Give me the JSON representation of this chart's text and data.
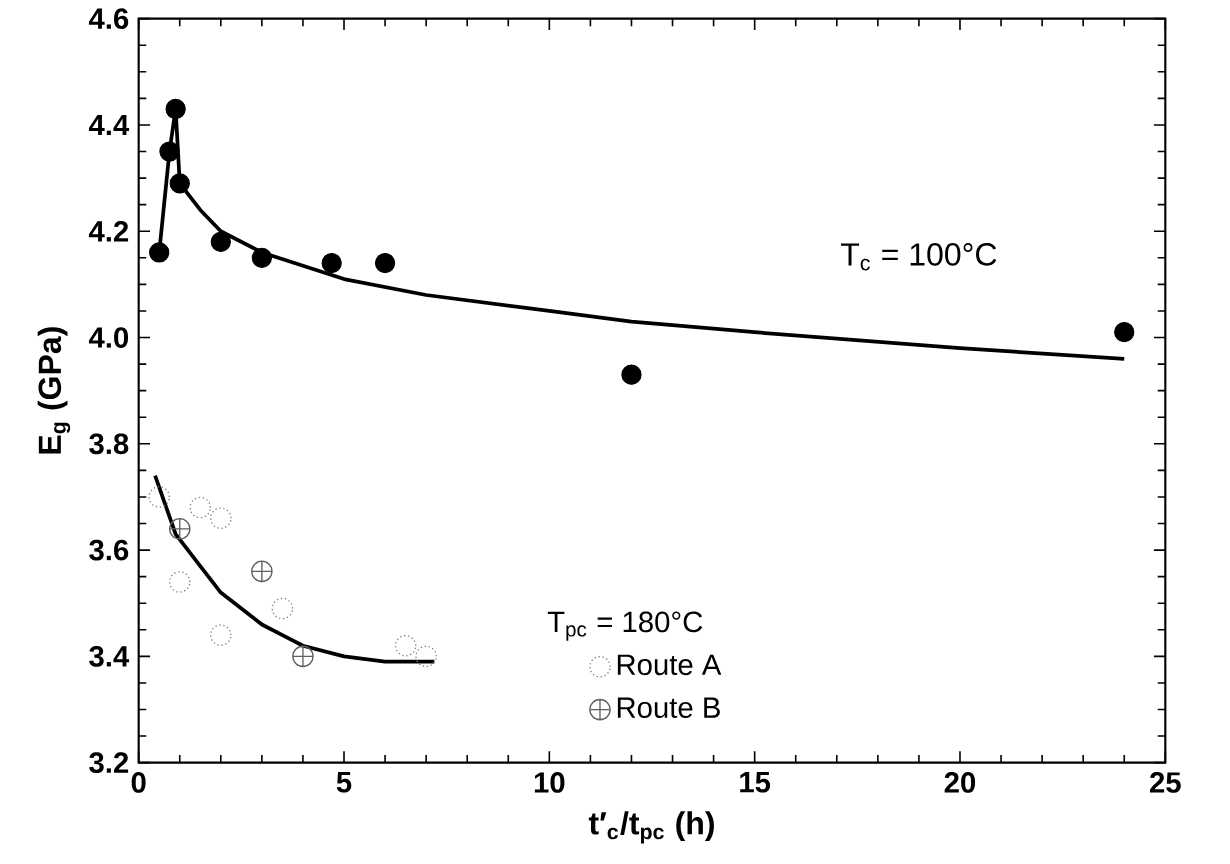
{
  "chart_data": {
    "type": "scatter",
    "xlabel": "t′$_{c}$/t$_{pc}$ (h)",
    "ylabel": "E$_{g}$ (GPa)",
    "xlim": [
      0,
      25
    ],
    "xticks": [
      0,
      5,
      10,
      15,
      20,
      25
    ],
    "ylim": [
      3.2,
      4.6
    ],
    "yticks": [
      3.2,
      3.4,
      3.6,
      3.8,
      {
        "value": 4,
        "label": "4.0"
      },
      4.2,
      4.4,
      4.6
    ],
    "legend": "bottom",
    "legend_title": "T$_{pc}$ = 180°C",
    "annotations": [
      "T$_{c}$ = 100°C"
    ],
    "series": [
      {
        "marker": "circle",
        "line_style": "solid",
        "color": "#000000",
        "x": [
          0.5,
          0.75,
          0.9,
          1,
          2,
          3,
          4.7,
          6,
          12,
          24
        ],
        "values": [
          4.16,
          4.35,
          4.43,
          4.29,
          4.18,
          4.15,
          4.14,
          4.14,
          3.93,
          4.01
        ]
      },
      {
        "type": "line",
        "marker": "none",
        "color": "#000000",
        "x": [
          0.5,
          0.75,
          0.9,
          1,
          1.5,
          2,
          3,
          5,
          7,
          10,
          12,
          15,
          20,
          24
        ],
        "values": [
          4.16,
          4.35,
          4.43,
          4.29,
          4.24,
          4.2,
          4.16,
          4.11,
          4.08,
          4.05,
          4.03,
          4.01,
          3.98,
          3.96
        ]
      },
      {
        "name": "Route A",
        "marker": "circle",
        "line_style": "dotted",
        "color": "#808080",
        "x": [
          0.5,
          1.5,
          2,
          1,
          3.5,
          2,
          6.5,
          7
        ],
        "values": [
          3.7,
          3.68,
          3.66,
          3.54,
          3.49,
          3.44,
          3.42,
          3.4
        ]
      },
      {
        "name": "Route B",
        "marker": "cross",
        "line_style": "solid",
        "color": "#606060",
        "x": [
          1,
          3,
          4
        ],
        "values": [
          3.64,
          3.56,
          3.4
        ]
      },
      {
        "type": "line",
        "marker": "none",
        "color": "#000000",
        "x": [
          0.4,
          0.9,
          1.5,
          2,
          3,
          3.5,
          4,
          5,
          6,
          7.2
        ],
        "values": [
          3.74,
          3.63,
          3.57,
          3.52,
          3.46,
          3.44,
          3.42,
          3.4,
          3.39,
          3.39
        ]
      }
    ]
  }
}
